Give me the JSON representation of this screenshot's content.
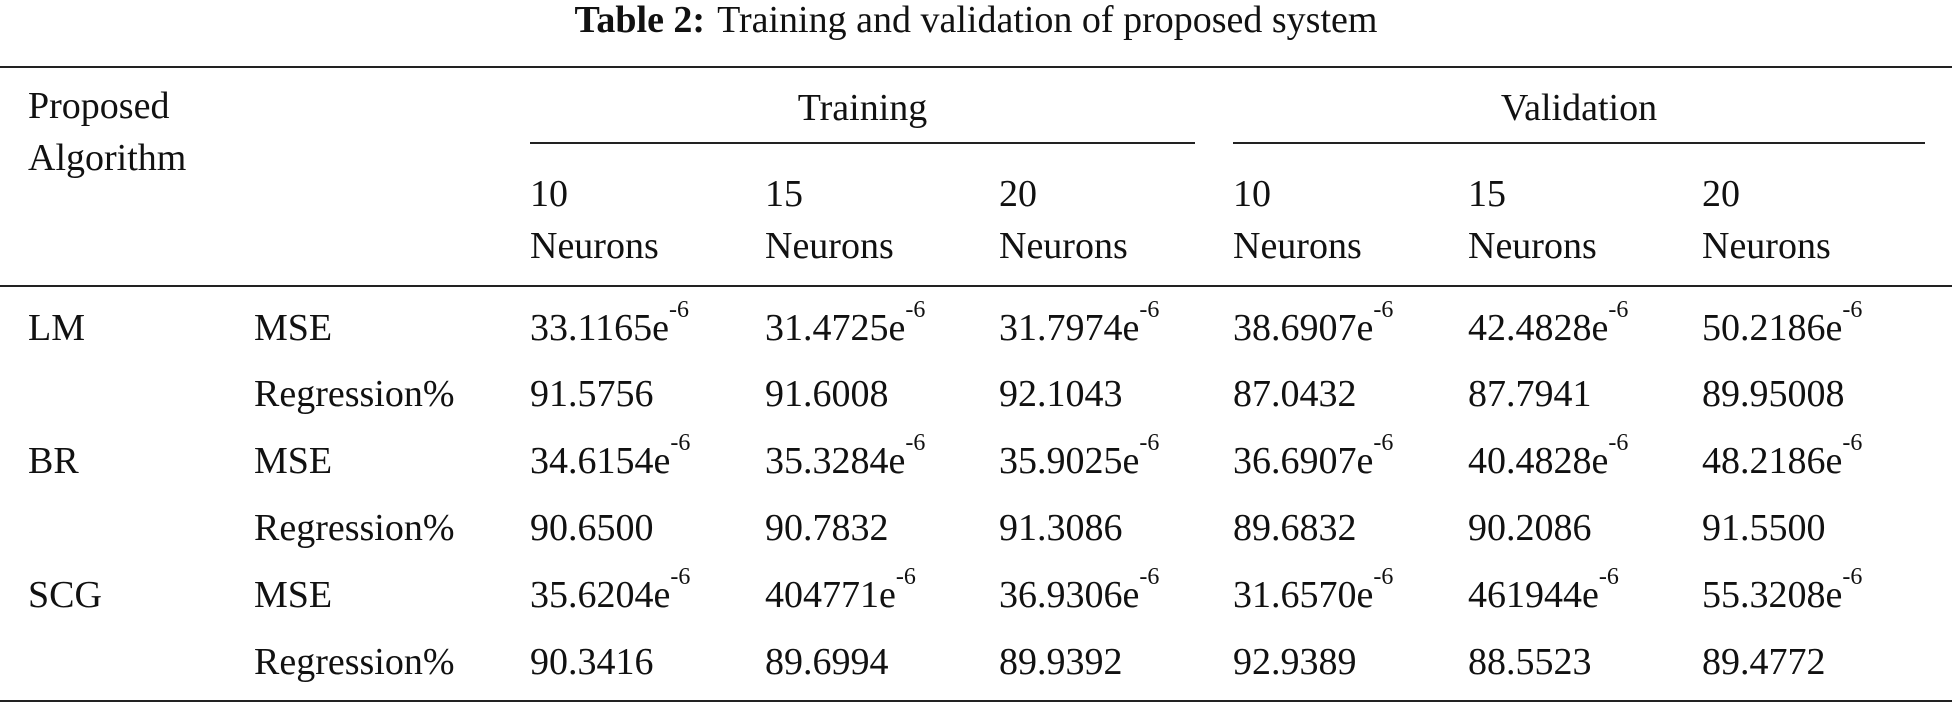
{
  "caption": {
    "label": "Table 2:",
    "text": "Training and validation of proposed system"
  },
  "table": {
    "header": {
      "row_label_line1": "Proposed",
      "row_label_line2": "Algorithm",
      "groups": [
        "Training",
        "Validation"
      ],
      "columns": [
        {
          "line1": "10",
          "line2": "Neurons"
        },
        {
          "line1": "15",
          "line2": "Neurons"
        },
        {
          "line1": "20",
          "line2": "Neurons"
        },
        {
          "line1": "10",
          "line2": "Neurons"
        },
        {
          "line1": "15",
          "line2": "Neurons"
        },
        {
          "line1": "20",
          "line2": "Neurons"
        }
      ]
    },
    "rows": [
      {
        "algorithm": "LM",
        "metric": "MSE",
        "cells": [
          {
            "base": "33.1165e",
            "exp": "-6"
          },
          {
            "base": "31.4725e",
            "exp": "-6"
          },
          {
            "base": "31.7974e",
            "exp": "-6"
          },
          {
            "base": "38.6907e",
            "exp": "-6"
          },
          {
            "base": "42.4828e",
            "exp": "-6"
          },
          {
            "base": "50.2186e",
            "exp": "-6"
          }
        ]
      },
      {
        "algorithm": "",
        "metric": "Regression%",
        "cells": [
          {
            "base": "91.5756",
            "exp": ""
          },
          {
            "base": "91.6008",
            "exp": ""
          },
          {
            "base": "92.1043",
            "exp": ""
          },
          {
            "base": "87.0432",
            "exp": ""
          },
          {
            "base": "87.7941",
            "exp": ""
          },
          {
            "base": "89.95008",
            "exp": ""
          }
        ]
      },
      {
        "algorithm": "BR",
        "metric": "MSE",
        "cells": [
          {
            "base": "34.6154e",
            "exp": "-6"
          },
          {
            "base": "35.3284e",
            "exp": "-6"
          },
          {
            "base": "35.9025e",
            "exp": "-6"
          },
          {
            "base": "36.6907e",
            "exp": "-6"
          },
          {
            "base": "40.4828e",
            "exp": "-6"
          },
          {
            "base": "48.2186e",
            "exp": "-6"
          }
        ]
      },
      {
        "algorithm": "",
        "metric": "Regression%",
        "cells": [
          {
            "base": "90.6500",
            "exp": ""
          },
          {
            "base": "90.7832",
            "exp": ""
          },
          {
            "base": "91.3086",
            "exp": ""
          },
          {
            "base": "89.6832",
            "exp": ""
          },
          {
            "base": "90.2086",
            "exp": ""
          },
          {
            "base": "91.5500",
            "exp": ""
          }
        ]
      },
      {
        "algorithm": "SCG",
        "metric": "MSE",
        "cells": [
          {
            "base": "35.6204e",
            "exp": "-6"
          },
          {
            "base": "404771e",
            "exp": "-6"
          },
          {
            "base": "36.9306e",
            "exp": "-6"
          },
          {
            "base": "31.6570e",
            "exp": "-6"
          },
          {
            "base": "461944e",
            "exp": "-6"
          },
          {
            "base": "55.3208e",
            "exp": "-6"
          }
        ]
      },
      {
        "algorithm": "",
        "metric": "Regression%",
        "cells": [
          {
            "base": "90.3416",
            "exp": ""
          },
          {
            "base": "89.6994",
            "exp": ""
          },
          {
            "base": "89.9392",
            "exp": ""
          },
          {
            "base": "92.9389",
            "exp": ""
          },
          {
            "base": "88.5523",
            "exp": ""
          },
          {
            "base": "89.4772",
            "exp": ""
          }
        ]
      }
    ]
  }
}
